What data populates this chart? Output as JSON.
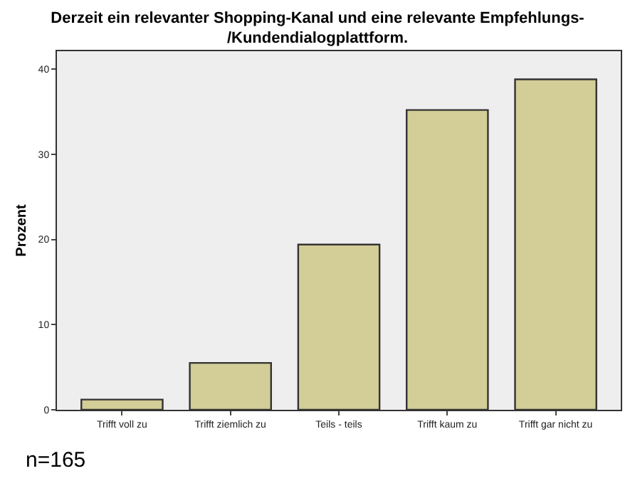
{
  "chart_data": {
    "type": "bar",
    "title": "Derzeit ein relevanter Shopping-Kanal und eine relevante Empfehlungs-\n/Kundendialogplattform.",
    "ylabel": "Prozent",
    "categories": [
      "Trifft voll zu",
      "Trifft ziemlich zu",
      "Teils - teils",
      "Trifft kaum zu",
      "Trifft gar nicht zu"
    ],
    "values": [
      1.2,
      5.5,
      19.4,
      35.2,
      38.8
    ],
    "color": "#d3cd97",
    "ylim": [
      0,
      42.1
    ],
    "yticks": [
      0,
      10,
      20,
      30,
      40
    ],
    "grid": false,
    "legend": false,
    "annotations": [
      "n=165"
    ]
  }
}
